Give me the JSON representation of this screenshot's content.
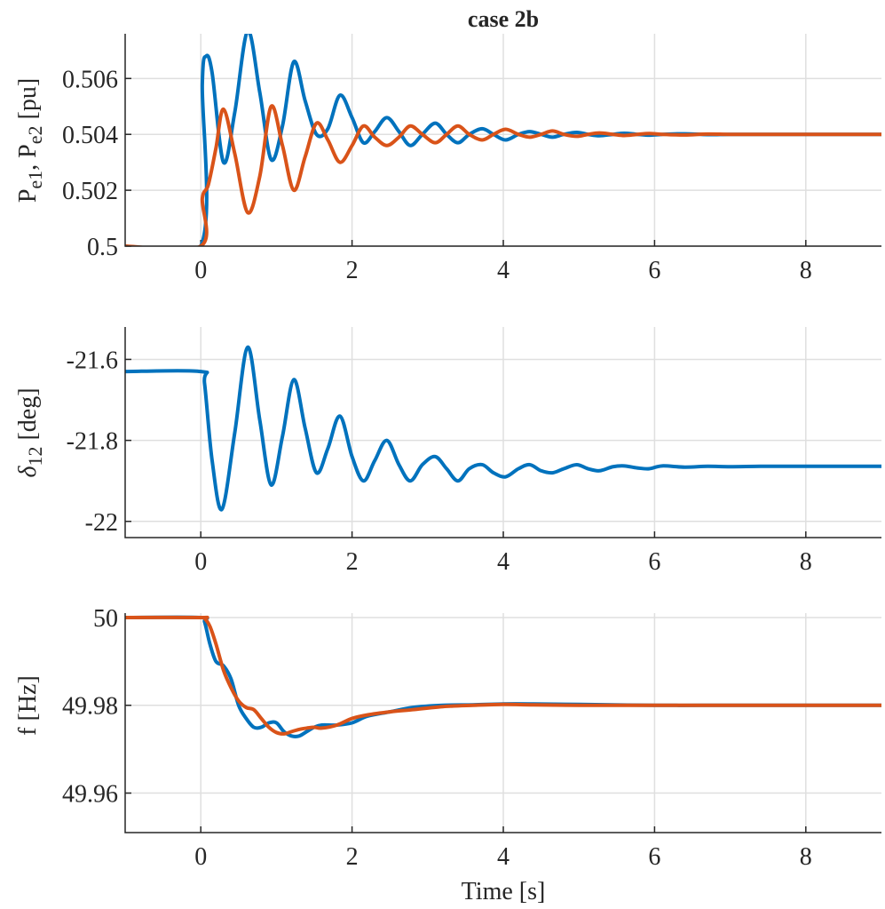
{
  "chart_data": {
    "type": "line",
    "title": "case 2b",
    "xlabel": "Time [s]",
    "colors": {
      "series1": "#0072BD",
      "series2": "#D95319"
    },
    "x_range": [
      -1,
      9
    ],
    "x_ticks": [
      0,
      2,
      4,
      6,
      8
    ],
    "x_tick_labels": [
      "0",
      "2",
      "4",
      "6",
      "8"
    ],
    "subplots": [
      {
        "id": "power",
        "ylabel_main": "P",
        "ylabel_sub1": "e1",
        "ylabel_sep": ", P",
        "ylabel_sub2": "e2",
        "ylabel_unit": " [pu]",
        "ylim": [
          0.5,
          0.5076
        ],
        "y_ticks": [
          0.5,
          0.502,
          0.504,
          0.506
        ],
        "y_tick_labels": [
          "0.5",
          "0.502",
          "0.504",
          "0.506"
        ],
        "series": [
          {
            "name": "P_e1",
            "x": [
              -1,
              0,
              0.02,
              0.07,
              0.15,
              0.3,
              0.45,
              0.62,
              0.78,
              0.93,
              1.08,
              1.23,
              1.38,
              1.53,
              1.68,
              1.84,
              2.0,
              2.15,
              2.3,
              2.46,
              2.62,
              2.77,
              2.93,
              3.1,
              3.25,
              3.4,
              3.55,
              3.72,
              3.87,
              4.03,
              4.2,
              4.35,
              4.5,
              4.65,
              4.8,
              4.97,
              5.12,
              5.27,
              5.45,
              5.6,
              5.77,
              5.93,
              6.1,
              6.4,
              6.7,
              7.0,
              7.4,
              7.8,
              8.3,
              9
            ],
            "y": [
              0.5,
              0.5,
              0.5058,
              0.5068,
              0.5062,
              0.503,
              0.5048,
              0.5077,
              0.5055,
              0.5031,
              0.5043,
              0.5066,
              0.5052,
              0.504,
              0.5042,
              0.5054,
              0.5046,
              0.5037,
              0.5041,
              0.5046,
              0.5041,
              0.5036,
              0.504,
              0.5044,
              0.504,
              0.5037,
              0.504,
              0.5042,
              0.504,
              0.5038,
              0.504,
              0.5041,
              0.504,
              0.5039,
              0.504,
              0.50407,
              0.504,
              0.50395,
              0.504,
              0.50404,
              0.504,
              0.50397,
              0.504,
              0.50402,
              0.50399,
              0.504,
              0.504,
              0.504,
              0.504,
              0.504
            ]
          },
          {
            "name": "P_e2",
            "x": [
              -1,
              0,
              0.02,
              0.1,
              0.2,
              0.3,
              0.45,
              0.62,
              0.78,
              0.93,
              1.08,
              1.23,
              1.38,
              1.53,
              1.68,
              1.84,
              2.0,
              2.15,
              2.3,
              2.46,
              2.62,
              2.77,
              2.93,
              3.1,
              3.25,
              3.4,
              3.55,
              3.72,
              3.87,
              4.03,
              4.2,
              4.35,
              4.5,
              4.65,
              4.8,
              4.97,
              5.12,
              5.27,
              5.45,
              5.6,
              5.77,
              5.93,
              6.1,
              6.4,
              6.7,
              7.0,
              7.4,
              7.8,
              8.3,
              9
            ],
            "y": [
              0.5,
              0.5,
              0.5017,
              0.5022,
              0.5035,
              0.5049,
              0.5033,
              0.5012,
              0.5025,
              0.505,
              0.5036,
              0.502,
              0.5032,
              0.5044,
              0.5038,
              0.503,
              0.5036,
              0.5043,
              0.5039,
              0.5036,
              0.5039,
              0.5043,
              0.504,
              0.5037,
              0.504,
              0.5043,
              0.504,
              0.5038,
              0.504,
              0.50418,
              0.504,
              0.5039,
              0.504,
              0.50412,
              0.504,
              0.50393,
              0.504,
              0.50405,
              0.504,
              0.50396,
              0.504,
              0.50403,
              0.504,
              0.50398,
              0.50401,
              0.504,
              0.504,
              0.504,
              0.504,
              0.504
            ]
          }
        ]
      },
      {
        "id": "delta",
        "ylabel_main": "δ",
        "ylabel_sub1": "12",
        "ylabel_unit": " [deg]",
        "ylim": [
          -22.04,
          -21.52
        ],
        "y_ticks": [
          -22,
          -21.8,
          -21.6
        ],
        "y_tick_labels": [
          "-22",
          "-21.8",
          "-21.6"
        ],
        "series": [
          {
            "name": "delta_12",
            "x": [
              -1,
              0,
              0.05,
              0.15,
              0.28,
              0.45,
              0.62,
              0.78,
              0.93,
              1.08,
              1.23,
              1.38,
              1.53,
              1.68,
              1.84,
              2.0,
              2.15,
              2.3,
              2.46,
              2.62,
              2.77,
              2.93,
              3.1,
              3.25,
              3.4,
              3.55,
              3.72,
              3.87,
              4.03,
              4.2,
              4.35,
              4.5,
              4.65,
              4.8,
              4.97,
              5.12,
              5.27,
              5.45,
              5.6,
              5.77,
              5.93,
              6.1,
              6.4,
              6.7,
              7.0,
              7.4,
              7.8,
              8.3,
              9
            ],
            "y": [
              -21.63,
              -21.63,
              -21.66,
              -21.85,
              -21.97,
              -21.78,
              -21.57,
              -21.75,
              -21.91,
              -21.79,
              -21.65,
              -21.77,
              -21.88,
              -21.82,
              -21.74,
              -21.84,
              -21.9,
              -21.85,
              -21.8,
              -21.86,
              -21.9,
              -21.86,
              -21.84,
              -21.87,
              -21.9,
              -21.87,
              -21.86,
              -21.88,
              -21.89,
              -21.87,
              -21.86,
              -21.875,
              -21.88,
              -21.87,
              -21.86,
              -21.87,
              -21.875,
              -21.865,
              -21.863,
              -21.868,
              -21.87,
              -21.863,
              -21.866,
              -21.864,
              -21.865,
              -21.864,
              -21.864,
              -21.864,
              -21.864
            ]
          }
        ]
      },
      {
        "id": "freq",
        "ylabel_main": "f [Hz]",
        "ylim": [
          49.951,
          50.001
        ],
        "y_ticks": [
          49.96,
          49.98,
          50
        ],
        "y_tick_labels": [
          "49.96",
          "49.98",
          "50"
        ],
        "series": [
          {
            "name": "f_1",
            "x": [
              -1,
              0,
              0.05,
              0.12,
              0.2,
              0.3,
              0.4,
              0.5,
              0.6,
              0.7,
              0.8,
              0.9,
              1.0,
              1.1,
              1.2,
              1.3,
              1.4,
              1.5,
              1.6,
              1.8,
              2.0,
              2.2,
              2.5,
              2.8,
              3.2,
              3.6,
              4.0,
              4.4,
              5.0,
              6.0,
              7.0,
              8.0,
              9
            ],
            "y": [
              50,
              50,
              49.999,
              49.994,
              49.99,
              49.989,
              49.986,
              49.98,
              49.977,
              49.975,
              49.975,
              49.976,
              49.976,
              49.974,
              49.973,
              49.973,
              49.974,
              49.975,
              49.9755,
              49.9755,
              49.976,
              49.9775,
              49.9785,
              49.9795,
              49.98,
              49.9801,
              49.9803,
              49.9803,
              49.9802,
              49.98,
              49.98,
              49.98,
              49.98
            ]
          },
          {
            "name": "f_2",
            "x": [
              -1,
              0,
              0.05,
              0.12,
              0.2,
              0.3,
              0.4,
              0.5,
              0.6,
              0.7,
              0.8,
              0.9,
              1.0,
              1.1,
              1.2,
              1.3,
              1.4,
              1.5,
              1.6,
              1.8,
              2.0,
              2.2,
              2.5,
              2.8,
              3.2,
              3.6,
              4.0,
              4.4,
              5.0,
              6.0,
              7.0,
              8.0,
              9
            ],
            "y": [
              50,
              50,
              49.9998,
              49.998,
              49.994,
              49.988,
              49.984,
              49.981,
              49.9795,
              49.979,
              49.977,
              49.975,
              49.9738,
              49.9735,
              49.974,
              49.9745,
              49.9748,
              49.975,
              49.9748,
              49.9755,
              49.977,
              49.9778,
              49.9785,
              49.979,
              49.9797,
              49.98,
              49.9802,
              49.9801,
              49.98,
              49.98,
              49.98,
              49.98,
              49.98
            ]
          }
        ]
      }
    ]
  }
}
